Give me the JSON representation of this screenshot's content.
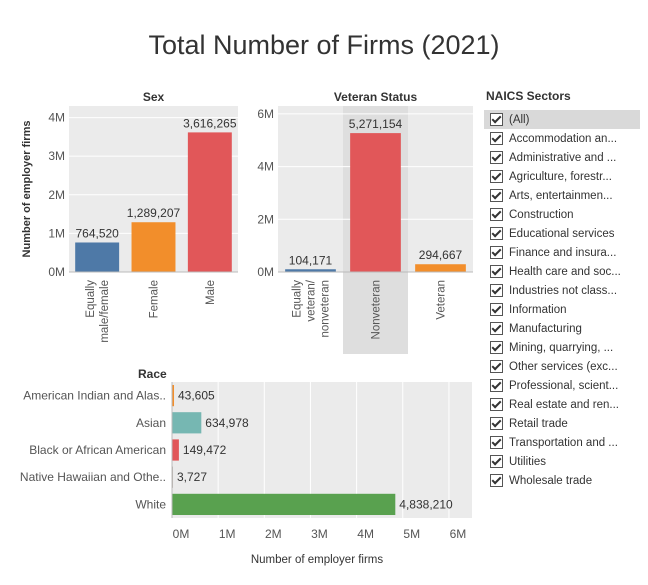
{
  "title": "Total Number of Firms (2021)",
  "chart_data": [
    {
      "type": "bar",
      "title": "Sex",
      "categories": [
        "Equally male/female",
        "Female",
        "Male"
      ],
      "category_lines": [
        [
          "Equally",
          "male/female"
        ],
        [
          "Female"
        ],
        [
          "Male"
        ]
      ],
      "values": [
        764520,
        1289207,
        3616265
      ],
      "value_labels": [
        "764,520",
        "1,289,207",
        "3,616,265"
      ],
      "colors": [
        "#4e79a7",
        "#f28e2b",
        "#e15759"
      ],
      "ylabel": "Number of employer firms",
      "ylim": [
        0,
        4300000
      ],
      "yticks": [
        0,
        1000000,
        2000000,
        3000000,
        4000000
      ],
      "ytick_labels": [
        "0M",
        "1M",
        "2M",
        "3M",
        "4M"
      ]
    },
    {
      "type": "bar",
      "title": "Veteran Status",
      "categories": [
        "Equally veteran/nonveteran",
        "Nonveteran",
        "Veteran"
      ],
      "category_lines": [
        [
          "Equally",
          "veteran/",
          "nonveteran"
        ],
        [
          "Nonveteran"
        ],
        [
          "Veteran"
        ]
      ],
      "values": [
        104171,
        5271154,
        294667
      ],
      "value_labels": [
        "104,171",
        "5,271,154",
        "294,667"
      ],
      "colors": [
        "#4e79a7",
        "#e15759",
        "#f28e2b"
      ],
      "highlighted_category": "Nonveteran",
      "ylim": [
        0,
        6300000
      ],
      "yticks": [
        0,
        2000000,
        4000000,
        6000000
      ],
      "ytick_labels": [
        "0M",
        "2M",
        "4M",
        "6M"
      ]
    },
    {
      "type": "bar",
      "orientation": "horizontal",
      "title": "Race",
      "categories": [
        "American Indian and Alas..",
        "Asian",
        "Black or African American",
        "Native Hawaiian and Othe..",
        "White"
      ],
      "values": [
        43605,
        634978,
        149472,
        3727,
        4838210
      ],
      "value_labels": [
        "43,605",
        "634,978",
        "149,472",
        "3,727",
        "4,838,210"
      ],
      "colors": [
        "#f28e2b",
        "#76b7b2",
        "#e15759",
        "#bab0ab",
        "#59a14f"
      ],
      "xlabel": "Number of employer firms",
      "xlim": [
        0,
        6500000
      ],
      "xticks": [
        0,
        1000000,
        2000000,
        3000000,
        4000000,
        5000000,
        6000000
      ],
      "xtick_labels": [
        "0M",
        "1M",
        "2M",
        "3M",
        "4M",
        "5M",
        "6M"
      ]
    }
  ],
  "legend": {
    "title": "NAICS Sectors",
    "items": [
      {
        "label": "(All)",
        "checked": true
      },
      {
        "label": "Accommodation an...",
        "checked": true
      },
      {
        "label": "Administrative and ...",
        "checked": true
      },
      {
        "label": "Agriculture, forestr...",
        "checked": true
      },
      {
        "label": "Arts, entertainmen...",
        "checked": true
      },
      {
        "label": "Construction",
        "checked": true
      },
      {
        "label": "Educational services",
        "checked": true
      },
      {
        "label": "Finance and insura...",
        "checked": true
      },
      {
        "label": "Health care and soc...",
        "checked": true
      },
      {
        "label": "Industries not class...",
        "checked": true
      },
      {
        "label": "Information",
        "checked": true
      },
      {
        "label": "Manufacturing",
        "checked": true
      },
      {
        "label": "Mining, quarrying, ...",
        "checked": true
      },
      {
        "label": "Other services (exc...",
        "checked": true
      },
      {
        "label": "Professional, scient...",
        "checked": true
      },
      {
        "label": "Real estate and ren...",
        "checked": true
      },
      {
        "label": "Retail trade",
        "checked": true
      },
      {
        "label": "Transportation and ...",
        "checked": true
      },
      {
        "label": "Utilities",
        "checked": true
      },
      {
        "label": "Wholesale trade",
        "checked": true
      }
    ]
  }
}
